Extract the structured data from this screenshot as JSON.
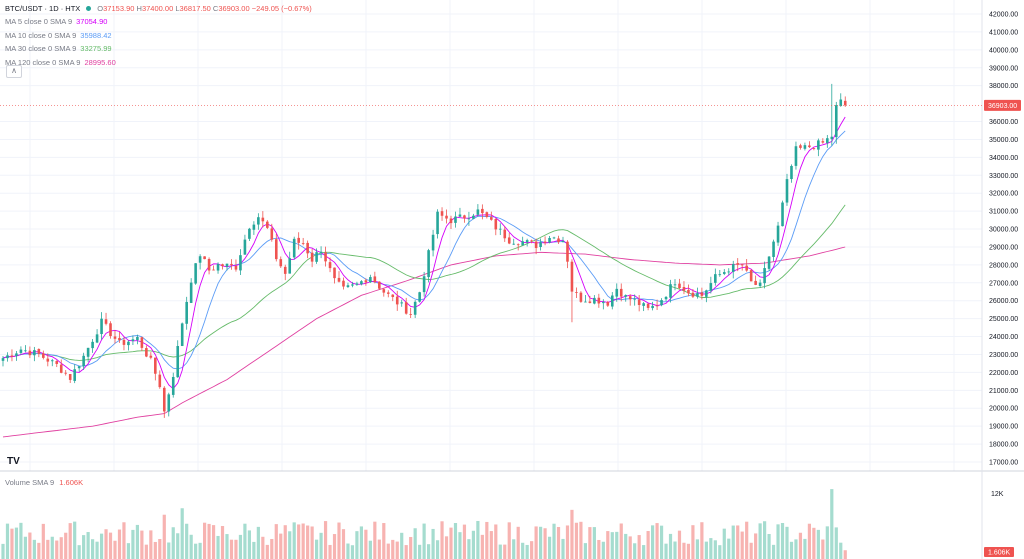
{
  "header": {
    "symbol": "BTC/USDT · 1D · HTX",
    "ohlc": [
      {
        "key": "O",
        "value": "37153.90"
      },
      {
        "key": "H",
        "value": "37400.00"
      },
      {
        "key": "L",
        "value": "36817.50"
      },
      {
        "key": "C",
        "value": "36903.00"
      }
    ],
    "change": "−249.05 (−0.67%)",
    "collapse_icon": "chevron-up-icon"
  },
  "indicators": [
    {
      "label": "MA 5 close 0 SMA 9",
      "value": "37054.90",
      "color": "#d500f9"
    },
    {
      "label": "MA 10 close 0 SMA 9",
      "value": "35988.42",
      "color": "#5b9cf6"
    },
    {
      "label": "MA 30 close 0 SMA 9",
      "value": "33275.99",
      "color": "#66bb6a"
    },
    {
      "label": "MA 120 close 0 SMA 9",
      "value": "28995.60",
      "color": "#e040a0"
    }
  ],
  "volume": {
    "label": "Volume SMA 9",
    "value": "1.606K",
    "axis_top_label": "12K",
    "last_label": "1.606K"
  },
  "colors": {
    "up": "#26a69a",
    "down": "#ef5350",
    "vol_up": "#a5dccf",
    "vol_down": "#f7b3b1",
    "grid": "#f0f3fa",
    "axis_text": "#131722"
  },
  "logo": "TV",
  "chart_data": {
    "type": "candlestick",
    "ylim": [
      17000,
      42000
    ],
    "yticks": [
      "42000.00",
      "41000.00",
      "40000.00",
      "39000.00",
      "38000.00",
      "36000.00",
      "35000.00",
      "34000.00",
      "33000.00",
      "32000.00",
      "31000.00",
      "30000.00",
      "29000.00",
      "28000.00",
      "27000.00",
      "26000.00",
      "25000.00",
      "24000.00",
      "23000.00",
      "22000.00",
      "21000.00",
      "20000.00",
      "19000.00",
      "18000.00",
      "17000.00"
    ],
    "last_price": 36903.0,
    "last_price_label": "36903.00",
    "close_path": [
      [
        0,
        22800
      ],
      [
        4,
        23300
      ],
      [
        8,
        23000
      ],
      [
        12,
        22400
      ],
      [
        15,
        21700
      ],
      [
        18,
        22900
      ],
      [
        22,
        24800
      ],
      [
        26,
        23600
      ],
      [
        30,
        23900
      ],
      [
        33,
        22600
      ],
      [
        35,
        21300
      ],
      [
        36,
        19800
      ],
      [
        38,
        21900
      ],
      [
        40,
        24800
      ],
      [
        42,
        27200
      ],
      [
        44,
        28600
      ],
      [
        46,
        27700
      ],
      [
        48,
        28000
      ],
      [
        52,
        27900
      ],
      [
        55,
        30200
      ],
      [
        57,
        30700
      ],
      [
        59,
        30000
      ],
      [
        61,
        28400
      ],
      [
        63,
        27500
      ],
      [
        65,
        29300
      ],
      [
        67,
        29200
      ],
      [
        69,
        28300
      ],
      [
        71,
        28900
      ],
      [
        74,
        27100
      ],
      [
        76,
        26600
      ],
      [
        79,
        26900
      ],
      [
        82,
        27400
      ],
      [
        85,
        26500
      ],
      [
        88,
        25900
      ],
      [
        91,
        25300
      ],
      [
        93,
        26500
      ],
      [
        95,
        28600
      ],
      [
        97,
        30800
      ],
      [
        100,
        30500
      ],
      [
        103,
        30700
      ],
      [
        106,
        31000
      ],
      [
        108,
        30600
      ],
      [
        110,
        30100
      ],
      [
        113,
        29400
      ],
      [
        116,
        29300
      ],
      [
        119,
        29100
      ],
      [
        122,
        29600
      ],
      [
        125,
        29400
      ],
      [
        126,
        28300
      ],
      [
        127,
        26600
      ],
      [
        129,
        26100
      ],
      [
        132,
        26100
      ],
      [
        135,
        25900
      ],
      [
        137,
        26700
      ],
      [
        139,
        26200
      ],
      [
        141,
        26000
      ],
      [
        144,
        25500
      ],
      [
        146,
        25800
      ],
      [
        148,
        26400
      ],
      [
        150,
        27100
      ],
      [
        153,
        26500
      ],
      [
        156,
        26300
      ],
      [
        159,
        27300
      ],
      [
        162,
        27800
      ],
      [
        165,
        28000
      ],
      [
        167,
        27000
      ],
      [
        169,
        26800
      ],
      [
        171,
        28500
      ],
      [
        173,
        30100
      ],
      [
        175,
        32600
      ],
      [
        177,
        34400
      ],
      [
        180,
        34600
      ],
      [
        183,
        34800
      ],
      [
        185,
        35200
      ],
      [
        186,
        36800
      ],
      [
        187,
        37100
      ],
      [
        188,
        36903
      ]
    ],
    "series": [
      {
        "name": "MA 5 close 0 SMA 9",
        "color": "#d500f9",
        "last": 37054.9
      },
      {
        "name": "MA 10 close 0 SMA 9",
        "color": "#5b9cf6",
        "last": 35988.42
      },
      {
        "name": "MA 30 close 0 SMA 9",
        "color": "#66bb6a",
        "last": 33275.99
      },
      {
        "name": "MA 120 close 0 SMA 9",
        "color": "#e040a0",
        "last": 28995.6
      }
    ],
    "ma120_path": [
      [
        0,
        18400
      ],
      [
        10,
        18700
      ],
      [
        20,
        19000
      ],
      [
        30,
        19500
      ],
      [
        36,
        19700
      ],
      [
        40,
        20300
      ],
      [
        50,
        21600
      ],
      [
        60,
        23300
      ],
      [
        70,
        25000
      ],
      [
        80,
        26300
      ],
      [
        90,
        27100
      ],
      [
        100,
        28000
      ],
      [
        110,
        28500
      ],
      [
        120,
        28700
      ],
      [
        130,
        28600
      ],
      [
        140,
        28300
      ],
      [
        150,
        28100
      ],
      [
        160,
        28000
      ],
      [
        170,
        28100
      ],
      [
        180,
        28500
      ],
      [
        188,
        28996
      ]
    ],
    "volume_ylim": [
      0,
      13000
    ],
    "volume_ticks": [
      "12K"
    ],
    "volume_last": 1606
  }
}
